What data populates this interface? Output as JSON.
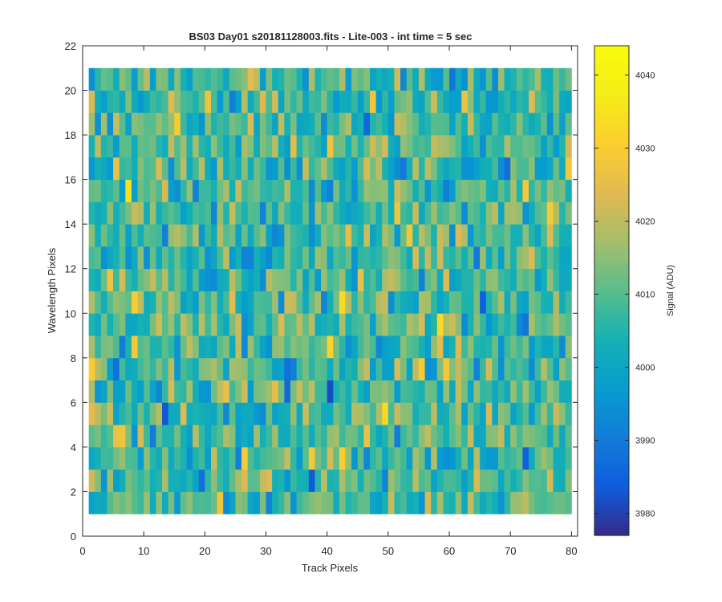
{
  "chart_data": {
    "type": "heatmap",
    "title": "BS03 Day01  s20181128003.fits - Lite-003 - int time = 5 sec",
    "xlabel": "Track Pixels",
    "ylabel": "Wavelength Pixels",
    "xlim": [
      0,
      81
    ],
    "ylim": [
      0,
      22
    ],
    "x_ticks": [
      "0",
      "10",
      "20",
      "30",
      "40",
      "50",
      "60",
      "70",
      "80"
    ],
    "y_ticks": [
      "0",
      "2",
      "4",
      "6",
      "8",
      "10",
      "12",
      "14",
      "16",
      "18",
      "20",
      "22"
    ],
    "x_range": [
      1,
      80
    ],
    "y_range": [
      1,
      21
    ],
    "colormap": "parula",
    "colorbar": {
      "label": "Signal (ADU)",
      "range": [
        3977,
        4044
      ],
      "ticks": [
        "3980",
        "3990",
        "4000",
        "4010",
        "4020",
        "4030",
        "4040"
      ]
    },
    "signal_mean": 4008,
    "signal_spread": 11,
    "grid": false
  }
}
